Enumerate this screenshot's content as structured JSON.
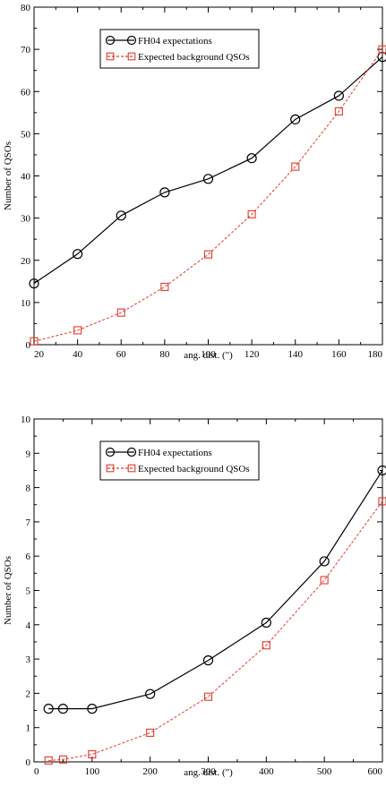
{
  "chart_data": [
    {
      "type": "line",
      "xlabel": "ang. dist. (\")",
      "ylabel": "Number of QSOs",
      "xlim": [
        20,
        180
      ],
      "ylim": [
        0,
        80
      ],
      "xticks": [
        20,
        40,
        60,
        80,
        100,
        120,
        140,
        160,
        180
      ],
      "yticks": [
        0,
        10,
        20,
        30,
        40,
        50,
        60,
        70,
        80
      ],
      "grid": false,
      "legend_position": "top-left",
      "series": [
        {
          "name": "FH04 expectations",
          "color": "#000000",
          "marker": "circle",
          "line_style": "solid",
          "x": [
            20,
            40,
            60,
            80,
            100,
            120,
            140,
            160,
            180
          ],
          "y": [
            14.5,
            21.5,
            30.6,
            36.1,
            39.3,
            44.2,
            53.4,
            59.0,
            68.2
          ]
        },
        {
          "name": "Expected background QSOs",
          "color": "#e8382c",
          "marker": "square",
          "line_style": "dashed",
          "x": [
            20,
            40,
            60,
            80,
            100,
            120,
            140,
            160,
            180
          ],
          "y": [
            0.8,
            3.4,
            7.6,
            13.7,
            21.4,
            30.9,
            42.2,
            55.3,
            70.0
          ]
        }
      ]
    },
    {
      "type": "line",
      "xlabel": "ang. dist. (\")",
      "ylabel": "Number of QSOs",
      "xlim": [
        0,
        600
      ],
      "ylim": [
        0,
        10
      ],
      "xticks": [
        0,
        100,
        200,
        300,
        400,
        500,
        600
      ],
      "yticks": [
        0,
        1,
        2,
        3,
        4,
        5,
        6,
        7,
        8,
        9,
        10
      ],
      "grid": false,
      "legend_position": "top-left",
      "series": [
        {
          "name": "FH04 expectations",
          "color": "#000000",
          "marker": "circle",
          "line_style": "solid",
          "x": [
            25,
            50,
            100,
            200,
            300,
            400,
            500,
            600
          ],
          "y": [
            1.55,
            1.55,
            1.55,
            1.98,
            2.96,
            4.06,
            5.85,
            8.5
          ]
        },
        {
          "name": "Expected background QSOs",
          "color": "#e8382c",
          "marker": "square",
          "line_style": "dashed",
          "x": [
            25,
            50,
            100,
            200,
            300,
            400,
            500,
            600
          ],
          "y": [
            0.04,
            0.07,
            0.22,
            0.85,
            1.9,
            3.4,
            5.3,
            7.6
          ]
        }
      ]
    }
  ]
}
